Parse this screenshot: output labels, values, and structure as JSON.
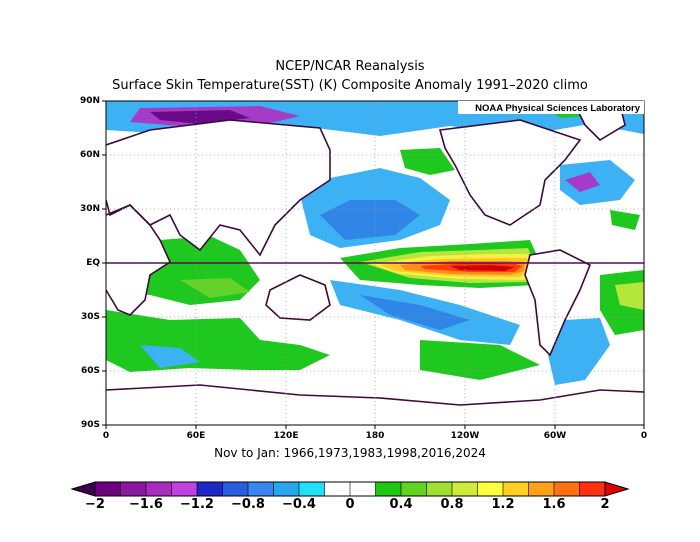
{
  "titles": {
    "line1": "NCEP/NCAR Reanalysis",
    "line2": "Surface Skin Temperature(SST) (K) Composite Anomaly 1991–2020 climo",
    "watermark": "NOAA Physical Sciences Laboratory",
    "composite": "Nov to Jan: 1966,1973,1983,1998,2016,2024"
  },
  "axes": {
    "lat_labels": [
      "90N",
      "60N",
      "30N",
      "EQ",
      "30S",
      "60S",
      "90S"
    ],
    "lon_labels": [
      "0",
      "60E",
      "120E",
      "180",
      "120W",
      "60W",
      "0"
    ]
  },
  "colorbar": {
    "labels": [
      "−2",
      "−1.6",
      "−1.2",
      "−0.8",
      "−0.4",
      "0",
      "0.4",
      "0.8",
      "1.2",
      "1.6",
      "2"
    ],
    "colors": [
      "#3c0050",
      "#6c0080",
      "#8c18a0",
      "#a82cbe",
      "#c040e0",
      "#1c28c8",
      "#2a5ee0",
      "#3a86f0",
      "#2aa6f0",
      "#20e0f8",
      "#ffffff",
      "#ffffff",
      "#1cc810",
      "#62d420",
      "#a0e030",
      "#d0ec38",
      "#ffff40",
      "#ffd020",
      "#ffa018",
      "#ff7010",
      "#ff3010",
      "#e00000"
    ]
  },
  "map_colors": {
    "neg1": "#22dcf5",
    "neg2": "#3cb2f5",
    "neg3": "#2f86e6",
    "neg4": "#1e55cc",
    "vneg": "#a53cc8",
    "vvneg": "#6a0a8a",
    "pos1": "#1ec81e",
    "pos2": "#64d22a",
    "pos3": "#b4e63c",
    "pos4": "#f5f046",
    "pos5": "#ffc828",
    "pos6": "#ff8c19",
    "pos7": "#ff3c0a",
    "pos8": "#d20000",
    "coast": "#3d0a3d",
    "equator": "#5a0a5a"
  }
}
